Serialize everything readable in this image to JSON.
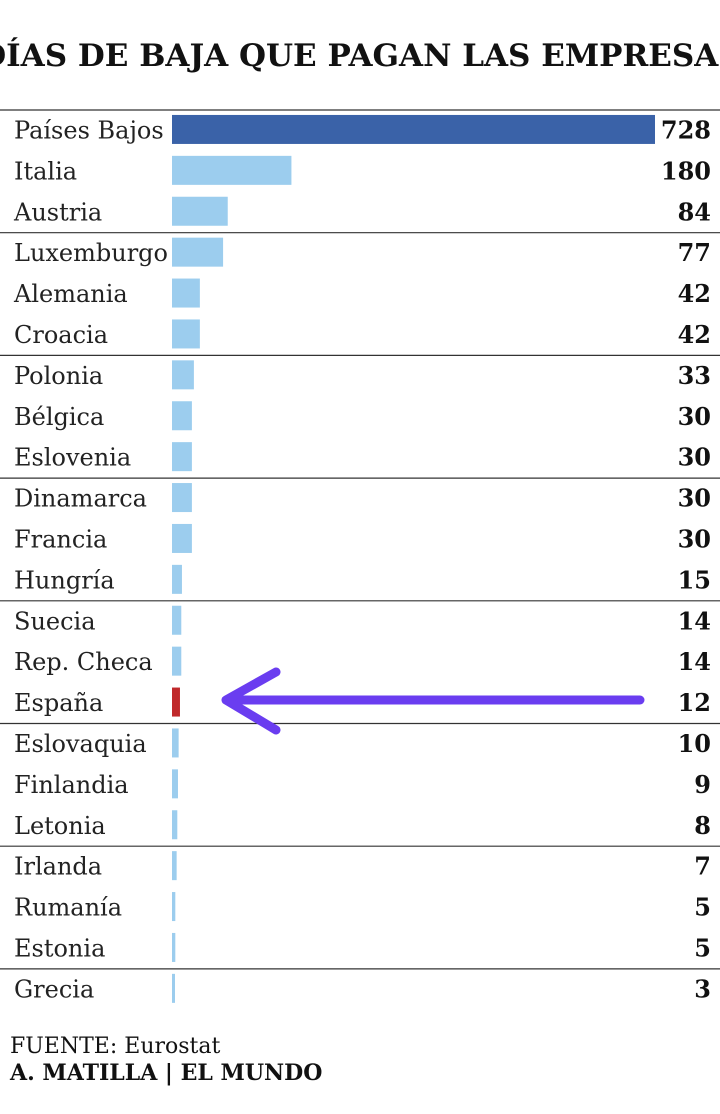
{
  "chart_data": {
    "type": "bar",
    "orientation": "horizontal",
    "title": "DÍAS DE BAJA QUE PAGAN LAS EMPRESAS",
    "categories": [
      "Países Bajos",
      "Italia",
      "Austria",
      "Luxemburgo",
      "Alemania",
      "Croacia",
      "Polonia",
      "Bélgica",
      "Eslovenia",
      "Dinamarca",
      "Francia",
      "Hungría",
      "Suecia",
      "Rep. Checa",
      "España",
      "Eslovaquia",
      "Finlandia",
      "Letonia",
      "Irlanda",
      "Rumanía",
      "Estonia",
      "Grecia"
    ],
    "values": [
      728,
      180,
      84,
      77,
      42,
      42,
      33,
      30,
      30,
      30,
      30,
      15,
      14,
      14,
      12,
      10,
      9,
      8,
      7,
      5,
      5,
      3
    ],
    "xlim": [
      0,
      728
    ],
    "colors": {
      "highlight_top": "#3a62a8",
      "default": "#9ccdee",
      "highlight_spain": "#c0292b",
      "arrow": "#6a3df0",
      "rule": "#333333"
    },
    "group_separators_after_index": [
      2,
      5,
      8,
      11,
      14,
      17,
      20
    ],
    "annotation": {
      "type": "arrow",
      "points_to": "España"
    }
  },
  "footer": {
    "source": "FUENTE: Eurostat",
    "credit": "A. MATILLA | EL MUNDO"
  }
}
